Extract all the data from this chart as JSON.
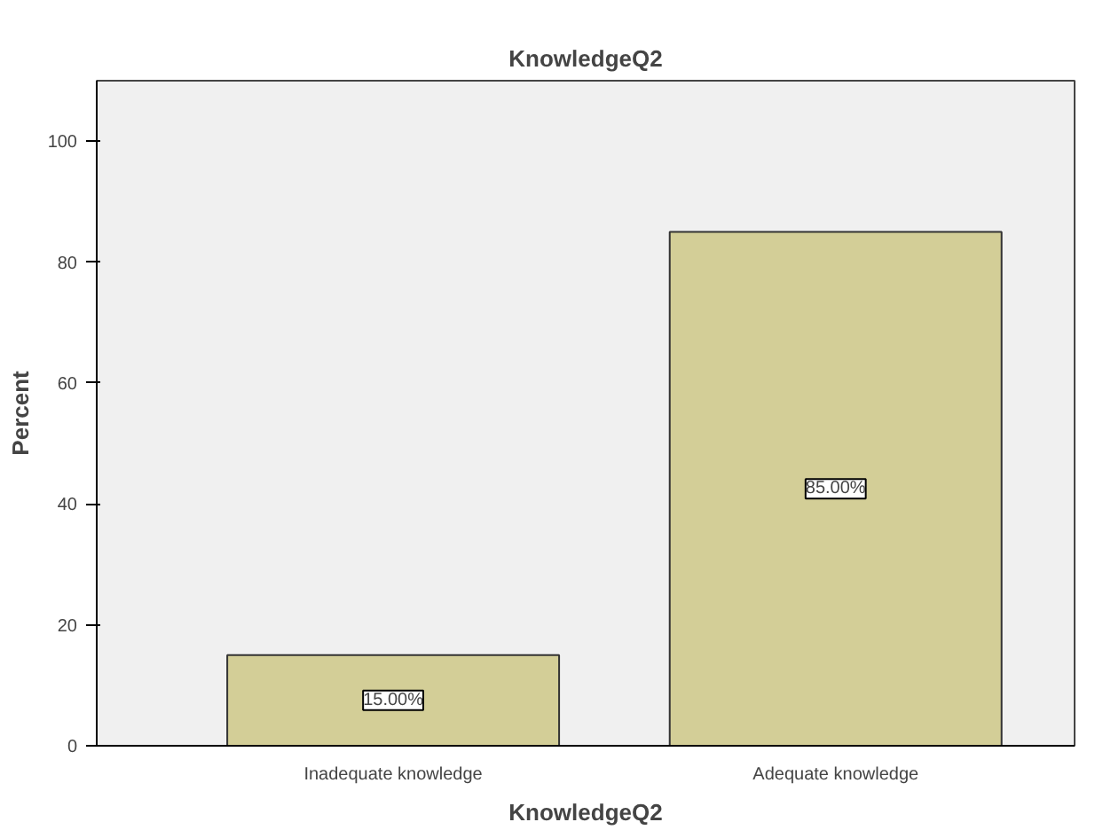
{
  "chart_data": {
    "type": "bar",
    "title": "KnowledgeQ2",
    "xlabel": "KnowledgeQ2",
    "ylabel": "Percent",
    "categories": [
      "Inadequate knowledge",
      "Adequate knowledge"
    ],
    "values": [
      15,
      85
    ],
    "color": "#d3ce97",
    "value_labels": [
      "15.00%",
      "85.00%"
    ],
    "ylim": [
      0,
      110
    ],
    "yticks": [
      0,
      20,
      40,
      60,
      80,
      100
    ],
    "grid": false
  }
}
